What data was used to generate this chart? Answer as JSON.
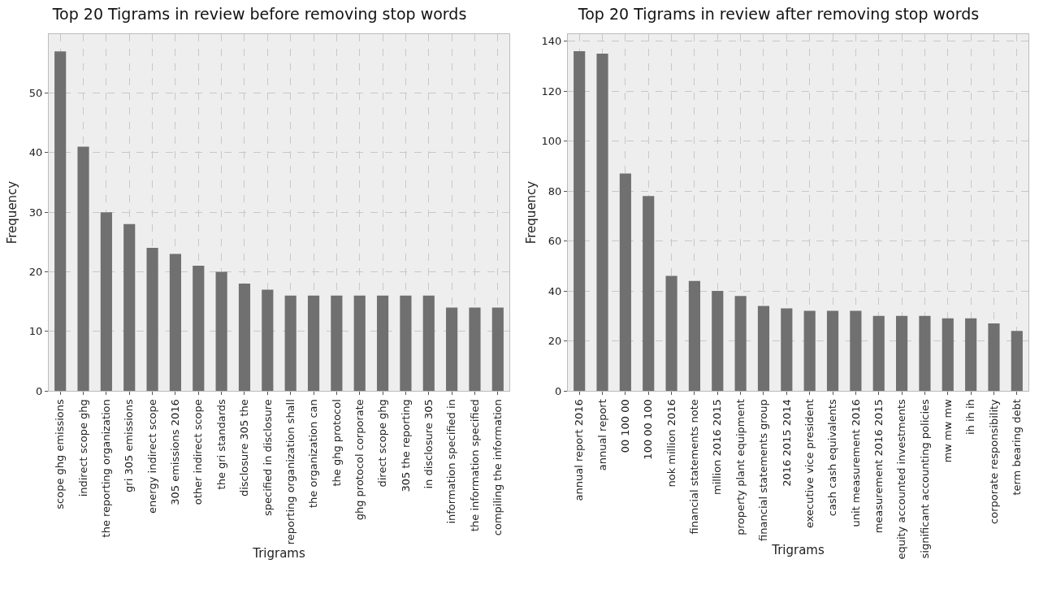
{
  "chart_data": [
    {
      "type": "bar",
      "title": "Top 20 Tigrams in review before removing stop words",
      "xlabel": "Trigrams",
      "ylabel": "Frequency",
      "categories": [
        "scope ghg emissions",
        "indirect scope ghg",
        "the reporting organization",
        "gri 305 emissions",
        "energy indirect scope",
        "305 emissions 2016",
        "other indirect scope",
        "the gri standards",
        "disclosure 305 the",
        "specified in disclosure",
        "reporting organization shall",
        "the organization can",
        "the ghg protocol",
        "ghg protocol corporate",
        "direct scope ghg",
        "305 the reporting",
        "in disclosure 305",
        "information specified in",
        "the information specified",
        "compiling the information"
      ],
      "values": [
        57,
        41,
        30,
        28,
        24,
        23,
        21,
        20,
        18,
        17,
        16,
        16,
        16,
        16,
        16,
        16,
        16,
        14,
        14,
        14
      ],
      "color": "#707070",
      "ylim": [
        0,
        59.9
      ],
      "yticks": [
        0,
        10,
        20,
        30,
        40,
        50
      ],
      "grid": true,
      "legend": false
    },
    {
      "type": "bar",
      "title": "Top 20 Tigrams in review after removing stop words",
      "xlabel": "Trigrams",
      "ylabel": "Frequency",
      "categories": [
        "annual report 2016",
        "annual report",
        "00 100 00",
        "100 00 100",
        "nok million 2016",
        "financial statements note",
        "million 2016 2015",
        "property plant equipment",
        "financial statements group",
        "2016 2015 2014",
        "executive vice president",
        "cash cash equivalents",
        "unit measurement 2016",
        "measurement 2016 2015",
        "equity accounted investments",
        "significant accounting policies",
        "mw mw mw",
        "ih ih ih",
        "corporate responsibility",
        "term bearing debt"
      ],
      "values": [
        136,
        135,
        87,
        78,
        46,
        44,
        40,
        38,
        34,
        33,
        32,
        32,
        32,
        30,
        30,
        30,
        29,
        29,
        27,
        24
      ],
      "color": "#707070",
      "ylim": [
        0,
        142.8
      ],
      "yticks": [
        0,
        20,
        40,
        60,
        80,
        100,
        120,
        140
      ],
      "grid": true,
      "legend": false
    }
  ]
}
